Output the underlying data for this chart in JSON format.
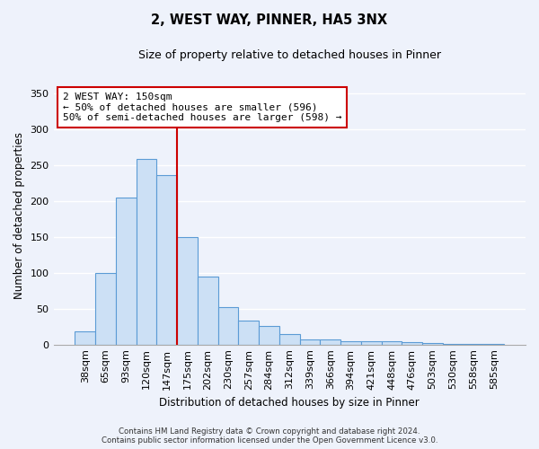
{
  "title": "2, WEST WAY, PINNER, HA5 3NX",
  "subtitle": "Size of property relative to detached houses in Pinner",
  "xlabel": "Distribution of detached houses by size in Pinner",
  "ylabel": "Number of detached properties",
  "bar_labels": [
    "38sqm",
    "65sqm",
    "93sqm",
    "120sqm",
    "147sqm",
    "175sqm",
    "202sqm",
    "230sqm",
    "257sqm",
    "284sqm",
    "312sqm",
    "339sqm",
    "366sqm",
    "394sqm",
    "421sqm",
    "448sqm",
    "476sqm",
    "503sqm",
    "530sqm",
    "558sqm",
    "585sqm"
  ],
  "bar_values": [
    18,
    100,
    205,
    258,
    236,
    149,
    95,
    52,
    33,
    26,
    15,
    7,
    7,
    4,
    4,
    4,
    3,
    2,
    1,
    1,
    1
  ],
  "bar_color": "#cce0f5",
  "bar_edge_color": "#5b9bd5",
  "vline_x_idx": 4,
  "vline_color": "#cc0000",
  "annotation_text": "2 WEST WAY: 150sqm\n← 50% of detached houses are smaller (596)\n50% of semi-detached houses are larger (598) →",
  "ylim": [
    0,
    360
  ],
  "yticks": [
    0,
    50,
    100,
    150,
    200,
    250,
    300,
    350
  ],
  "footer_line1": "Contains HM Land Registry data © Crown copyright and database right 2024.",
  "footer_line2": "Contains public sector information licensed under the Open Government Licence v3.0.",
  "background_color": "#eef2fb",
  "grid_color": "#ffffff"
}
